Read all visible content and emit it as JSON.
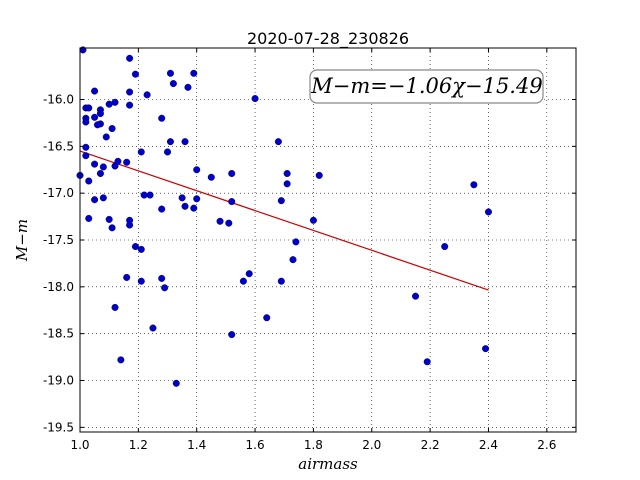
{
  "chart_data": {
    "type": "scatter",
    "title": "2020-07-28_230826",
    "xlabel": "airmass",
    "ylabel": "M−m",
    "xlim": [
      1.0,
      2.7
    ],
    "ylim": [
      -19.55,
      -15.45
    ],
    "xticks": [
      "1.0",
      "1.2",
      "1.4",
      "1.6",
      "1.8",
      "2.0",
      "2.2",
      "2.4",
      "2.6"
    ],
    "yticks": [
      "-16.0",
      "-16.5",
      "-17.0",
      "-17.5",
      "-18.0",
      "-18.5",
      "-19.0",
      "-19.5"
    ],
    "grid": true,
    "annotation": "M−m=−1.06χ−15.49",
    "fit": {
      "slope": -1.06,
      "intercept": -15.49,
      "x_range": [
        1.0,
        2.4
      ],
      "color": "#cc0000"
    },
    "point_color": "#0000cc",
    "points": [
      [
        1.01,
        -15.47
      ],
      [
        1.17,
        -15.56
      ],
      [
        1.31,
        -15.72
      ],
      [
        1.39,
        -15.72
      ],
      [
        1.19,
        -15.73
      ],
      [
        1.32,
        -15.83
      ],
      [
        1.37,
        -15.87
      ],
      [
        1.05,
        -15.91
      ],
      [
        1.17,
        -15.92
      ],
      [
        1.23,
        -15.95
      ],
      [
        1.6,
        -15.99
      ],
      [
        1.12,
        -16.03
      ],
      [
        1.1,
        -16.05
      ],
      [
        1.17,
        -16.06
      ],
      [
        1.02,
        -16.09
      ],
      [
        1.03,
        -16.09
      ],
      [
        1.07,
        -16.11
      ],
      [
        1.07,
        -16.15
      ],
      [
        1.05,
        -16.19
      ],
      [
        1.02,
        -16.2
      ],
      [
        1.28,
        -16.2
      ],
      [
        1.02,
        -16.24
      ],
      [
        1.07,
        -16.26
      ],
      [
        1.06,
        -16.27
      ],
      [
        1.11,
        -16.31
      ],
      [
        1.09,
        -16.4
      ],
      [
        1.31,
        -16.45
      ],
      [
        1.36,
        -16.45
      ],
      [
        1.68,
        -16.45
      ],
      [
        1.02,
        -16.51
      ],
      [
        1.3,
        -16.56
      ],
      [
        1.21,
        -16.56
      ],
      [
        1.02,
        -16.6
      ],
      [
        1.13,
        -16.66
      ],
      [
        1.16,
        -16.67
      ],
      [
        1.05,
        -16.69
      ],
      [
        1.12,
        -16.71
      ],
      [
        1.08,
        -16.72
      ],
      [
        1.4,
        -16.75
      ],
      [
        1.07,
        -16.79
      ],
      [
        1.71,
        -16.79
      ],
      [
        1.52,
        -16.79
      ],
      [
        1.0,
        -16.81
      ],
      [
        1.82,
        -16.81
      ],
      [
        1.45,
        -16.83
      ],
      [
        1.03,
        -16.87
      ],
      [
        1.71,
        -16.9
      ],
      [
        2.35,
        -16.91
      ],
      [
        1.22,
        -17.02
      ],
      [
        1.24,
        -17.02
      ],
      [
        1.35,
        -17.05
      ],
      [
        1.08,
        -17.05
      ],
      [
        1.4,
        -17.06
      ],
      [
        1.05,
        -17.07
      ],
      [
        1.69,
        -17.08
      ],
      [
        1.52,
        -17.09
      ],
      [
        1.36,
        -17.14
      ],
      [
        1.39,
        -17.16
      ],
      [
        1.28,
        -17.17
      ],
      [
        2.4,
        -17.2
      ],
      [
        1.03,
        -17.27
      ],
      [
        1.1,
        -17.28
      ],
      [
        1.8,
        -17.29
      ],
      [
        1.17,
        -17.29
      ],
      [
        1.48,
        -17.3
      ],
      [
        1.51,
        -17.32
      ],
      [
        1.17,
        -17.34
      ],
      [
        1.11,
        -17.37
      ],
      [
        1.74,
        -17.52
      ],
      [
        2.25,
        -17.57
      ],
      [
        1.19,
        -17.57
      ],
      [
        1.21,
        -17.6
      ],
      [
        1.73,
        -17.71
      ],
      [
        1.58,
        -17.86
      ],
      [
        1.16,
        -17.9
      ],
      [
        1.28,
        -17.91
      ],
      [
        1.21,
        -17.94
      ],
      [
        1.69,
        -17.94
      ],
      [
        1.56,
        -17.94
      ],
      [
        1.29,
        -18.01
      ],
      [
        2.15,
        -18.1
      ],
      [
        1.12,
        -18.22
      ],
      [
        1.64,
        -18.33
      ],
      [
        1.25,
        -18.44
      ],
      [
        1.52,
        -18.51
      ],
      [
        2.39,
        -18.66
      ],
      [
        1.14,
        -18.78
      ],
      [
        2.19,
        -18.8
      ],
      [
        1.33,
        -19.03
      ]
    ]
  }
}
